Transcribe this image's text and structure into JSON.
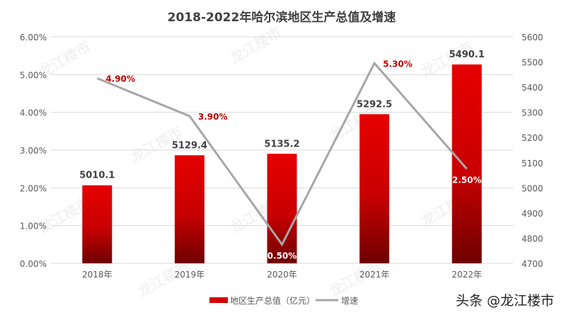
{
  "chart_data": {
    "type": "bar+line",
    "title": "2018-2022年哈尔滨地区生产总值及增速",
    "categories": [
      "2018年",
      "2019年",
      "2020年",
      "2021年",
      "2022年"
    ],
    "series": [
      {
        "name": "地区生产总值（亿元）",
        "type": "bar",
        "axis": "right",
        "values": [
          5010.1,
          5129.4,
          5135.2,
          5292.5,
          5490.1
        ],
        "labels": [
          "5010.1",
          "5129.4",
          "5135.2",
          "5292.5",
          "5490.1"
        ],
        "color": "#d40000"
      },
      {
        "name": "增速",
        "type": "line",
        "axis": "left",
        "values": [
          4.9,
          3.9,
          0.5,
          5.3,
          2.5
        ],
        "labels": [
          "4.90%",
          "3.90%",
          "0.50%",
          "5.30%",
          "2.50%"
        ],
        "label_colors": [
          "#c00000",
          "#c00000",
          "#ffffff",
          "#c00000",
          "#ffffff"
        ],
        "label_placement": [
          "right",
          "right",
          "below",
          "right",
          "below"
        ],
        "color": "#a6a6a6"
      }
    ],
    "left_axis": {
      "min": 0,
      "max": 6,
      "step": 1,
      "ticks": [
        "0.00%",
        "1.00%",
        "2.00%",
        "3.00%",
        "4.00%",
        "5.00%",
        "6.00%"
      ]
    },
    "right_axis": {
      "min": 4700,
      "max": 5600,
      "step": 100,
      "ticks": [
        "4700",
        "4800",
        "4900",
        "5000",
        "5100",
        "5200",
        "5300",
        "5400",
        "5500",
        "5600"
      ]
    },
    "grid": true,
    "legend": "bottom",
    "watermark": "龙江楼市"
  },
  "footer": {
    "source": "头条 @龙江楼市"
  }
}
